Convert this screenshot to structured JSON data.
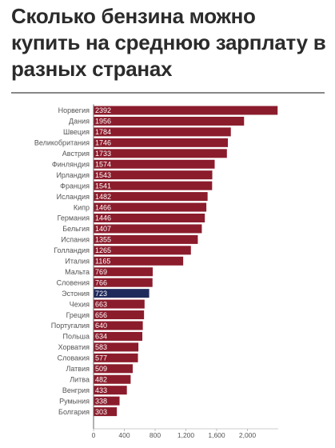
{
  "page": {
    "title": "Сколько бензина можно купить на среднюю зарплату в разных странах"
  },
  "colors": {
    "bar": "#8b1c2c",
    "highlight": "#1f2a5c",
    "text": "#555555",
    "axis": "#666666"
  },
  "chart_data": {
    "type": "bar",
    "orientation": "horizontal",
    "categories": [
      "Норвегия",
      "Дания",
      "Швеция",
      "Великобритания",
      "Австрия",
      "Финляндия",
      "Ирландия",
      "Франция",
      "Исландия",
      "Кипр",
      "Германия",
      "Бельгия",
      "Испания",
      "Голландия",
      "Италия",
      "Мальта",
      "Словения",
      "Эстония",
      "Чехия",
      "Греция",
      "Португалия",
      "Польша",
      "Хорватия",
      "Словакия",
      "Латвия",
      "Литва",
      "Венгрия",
      "Румыния",
      "Болгария"
    ],
    "values": [
      2392,
      1956,
      1784,
      1746,
      1733,
      1574,
      1543,
      1541,
      1482,
      1466,
      1446,
      1407,
      1355,
      1265,
      1165,
      769,
      766,
      723,
      663,
      656,
      640,
      634,
      583,
      577,
      509,
      482,
      433,
      338,
      303
    ],
    "value_labels": [
      "2392",
      "1956",
      "1784",
      "1746",
      "1733",
      "1574",
      "1543",
      "1541",
      "1482",
      "1466",
      "1446",
      "1407",
      "1355",
      "1265",
      "1165",
      "769",
      "766",
      "723",
      "663",
      "656",
      "640",
      "634",
      "583",
      "577",
      "509",
      "482",
      "433",
      "338",
      "303"
    ],
    "highlighted_category": "Эстония",
    "xlim": [
      0,
      2400
    ],
    "x_ticks": [
      0,
      400,
      800,
      1200,
      1600,
      2000
    ],
    "x_tick_labels": [
      "0",
      "400",
      "800",
      "1,200",
      "1,600",
      "2,000"
    ],
    "grid": false,
    "title": "Сколько бензина можно купить на среднюю зарплату в разных странах"
  }
}
